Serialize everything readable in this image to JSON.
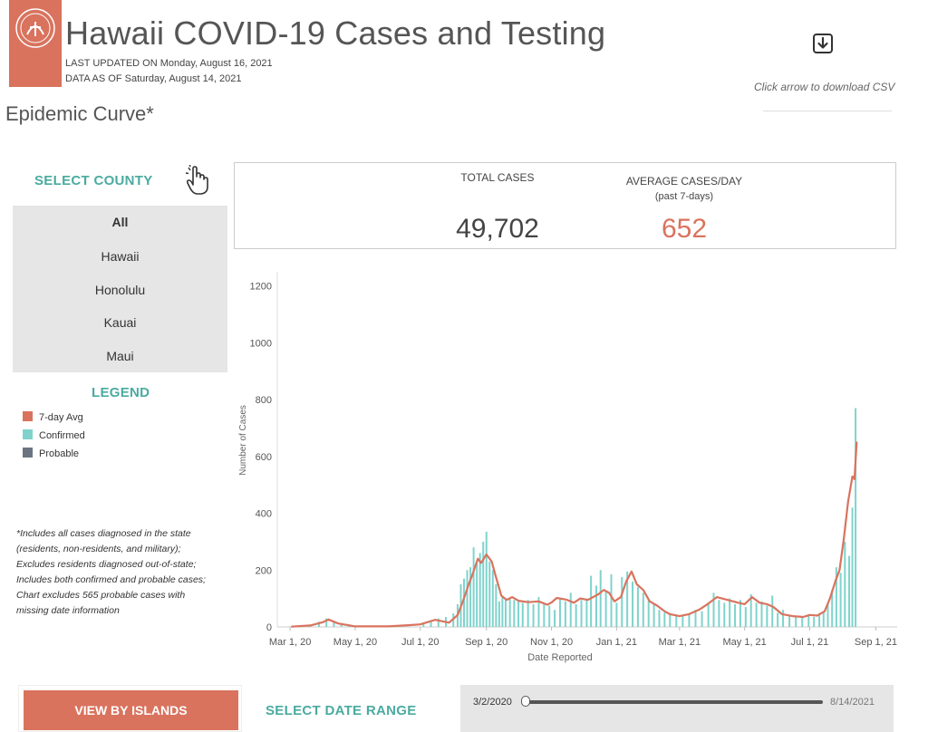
{
  "header": {
    "title": "Hawaii COVID-19 Cases and Testing",
    "last_updated": "LAST UPDATED ON Monday, August 16, 2021",
    "data_as_of": "DATA AS OF Saturday, August 14, 2021",
    "download_note": "Click arrow to download CSV"
  },
  "section_title": "Epidemic Curve*",
  "county_selector": {
    "title": "SELECT COUNTY",
    "items": [
      "All",
      "Hawaii",
      "Honolulu",
      "Kauai",
      "Maui"
    ],
    "selected": "All"
  },
  "legend": {
    "title": "LEGEND",
    "items": [
      {
        "label": "7-day Avg",
        "color": "#d9735e"
      },
      {
        "label": "Confirmed",
        "color": "#7fd3cc"
      },
      {
        "label": "Probable",
        "color": "#6b7480"
      }
    ]
  },
  "footnote": "*Includes all cases diagnosed in the state (residents, non-residents, and military); Excludes residents diagnosed out-of-state; Includes both confirmed and probable cases; Chart excludes 565 probable cases with missing date information",
  "kpis": {
    "total_cases_label": "TOTAL CASES",
    "total_cases_value": "49,702",
    "avg_label": "AVERAGE CASES/DAY",
    "avg_sublabel": "(past 7-days)",
    "avg_value": "652",
    "total_color": "#444444",
    "avg_color": "#d9735e"
  },
  "chart_data": {
    "type": "bar",
    "xlabel": "Date Reported",
    "ylabel": "Number of Cases",
    "ylim": [
      0,
      1250
    ],
    "yticks": [
      0,
      200,
      400,
      600,
      800,
      1000,
      1200
    ],
    "xlim": [
      "2020-02-18",
      "2021-09-21"
    ],
    "xticks": [
      {
        "date": "2020-03-01",
        "label": "Mar 1, 20"
      },
      {
        "date": "2020-05-01",
        "label": "May 1, 20"
      },
      {
        "date": "2020-07-01",
        "label": "Jul 1, 20"
      },
      {
        "date": "2020-09-01",
        "label": "Sep 1, 20"
      },
      {
        "date": "2020-11-01",
        "label": "Nov 1, 20"
      },
      {
        "date": "2021-01-01",
        "label": "Jan 1, 21"
      },
      {
        "date": "2021-03-01",
        "label": "Mar 1, 21"
      },
      {
        "date": "2021-05-01",
        "label": "May 1, 21"
      },
      {
        "date": "2021-07-01",
        "label": "Jul 1, 21"
      },
      {
        "date": "2021-09-01",
        "label": "Sep 1, 21"
      }
    ],
    "series": [
      {
        "name": "7-day Avg",
        "kind": "line",
        "color": "#d9735e",
        "points": [
          [
            "2020-03-02",
            1
          ],
          [
            "2020-03-20",
            5
          ],
          [
            "2020-04-01",
            17
          ],
          [
            "2020-04-06",
            26
          ],
          [
            "2020-04-15",
            12
          ],
          [
            "2020-05-01",
            2
          ],
          [
            "2020-06-01",
            2
          ],
          [
            "2020-06-20",
            6
          ],
          [
            "2020-07-01",
            9
          ],
          [
            "2020-07-15",
            25
          ],
          [
            "2020-07-28",
            15
          ],
          [
            "2020-08-05",
            42
          ],
          [
            "2020-08-10",
            90
          ],
          [
            "2020-08-15",
            145
          ],
          [
            "2020-08-19",
            185
          ],
          [
            "2020-08-24",
            240
          ],
          [
            "2020-08-27",
            225
          ],
          [
            "2020-09-01",
            255
          ],
          [
            "2020-09-06",
            230
          ],
          [
            "2020-09-10",
            175
          ],
          [
            "2020-09-15",
            110
          ],
          [
            "2020-09-20",
            95
          ],
          [
            "2020-09-25",
            105
          ],
          [
            "2020-10-01",
            92
          ],
          [
            "2020-10-10",
            87
          ],
          [
            "2020-10-20",
            90
          ],
          [
            "2020-10-28",
            78
          ],
          [
            "2020-11-01",
            86
          ],
          [
            "2020-11-06",
            102
          ],
          [
            "2020-11-15",
            96
          ],
          [
            "2020-11-22",
            85
          ],
          [
            "2020-11-28",
            100
          ],
          [
            "2020-12-05",
            95
          ],
          [
            "2020-12-15",
            115
          ],
          [
            "2020-12-20",
            130
          ],
          [
            "2020-12-25",
            120
          ],
          [
            "2020-12-30",
            90
          ],
          [
            "2021-01-05",
            105
          ],
          [
            "2021-01-10",
            160
          ],
          [
            "2021-01-15",
            195
          ],
          [
            "2021-01-20",
            150
          ],
          [
            "2021-01-26",
            130
          ],
          [
            "2021-02-01",
            90
          ],
          [
            "2021-02-08",
            75
          ],
          [
            "2021-02-15",
            55
          ],
          [
            "2021-02-20",
            45
          ],
          [
            "2021-03-01",
            38
          ],
          [
            "2021-03-10",
            45
          ],
          [
            "2021-03-20",
            62
          ],
          [
            "2021-03-28",
            82
          ],
          [
            "2021-04-05",
            105
          ],
          [
            "2021-04-15",
            95
          ],
          [
            "2021-04-25",
            85
          ],
          [
            "2021-05-01",
            80
          ],
          [
            "2021-05-08",
            105
          ],
          [
            "2021-05-15",
            85
          ],
          [
            "2021-05-22",
            80
          ],
          [
            "2021-05-28",
            70
          ],
          [
            "2021-06-05",
            45
          ],
          [
            "2021-06-15",
            38
          ],
          [
            "2021-06-25",
            35
          ],
          [
            "2021-07-01",
            42
          ],
          [
            "2021-07-08",
            40
          ],
          [
            "2021-07-15",
            55
          ],
          [
            "2021-07-20",
            100
          ],
          [
            "2021-07-25",
            160
          ],
          [
            "2021-07-29",
            200
          ],
          [
            "2021-08-02",
            310
          ],
          [
            "2021-08-06",
            440
          ],
          [
            "2021-08-10",
            530
          ],
          [
            "2021-08-12",
            520
          ],
          [
            "2021-08-14",
            652
          ]
        ]
      },
      {
        "name": "Confirmed",
        "kind": "bar",
        "color": "#7fd3cc",
        "points": [
          [
            "2020-03-20",
            6
          ],
          [
            "2020-03-28",
            18
          ],
          [
            "2020-04-04",
            30
          ],
          [
            "2020-04-11",
            20
          ],
          [
            "2020-04-18",
            8
          ],
          [
            "2020-04-25",
            3
          ],
          [
            "2020-07-04",
            12
          ],
          [
            "2020-07-11",
            22
          ],
          [
            "2020-07-18",
            30
          ],
          [
            "2020-07-25",
            35
          ],
          [
            "2020-08-01",
            48
          ],
          [
            "2020-08-05",
            80
          ],
          [
            "2020-08-08",
            150
          ],
          [
            "2020-08-11",
            170
          ],
          [
            "2020-08-14",
            200
          ],
          [
            "2020-08-17",
            210
          ],
          [
            "2020-08-20",
            280
          ],
          [
            "2020-08-23",
            230
          ],
          [
            "2020-08-26",
            260
          ],
          [
            "2020-08-29",
            300
          ],
          [
            "2020-09-01",
            335
          ],
          [
            "2020-09-04",
            230
          ],
          [
            "2020-09-07",
            200
          ],
          [
            "2020-09-10",
            150
          ],
          [
            "2020-09-13",
            90
          ],
          [
            "2020-09-16",
            110
          ],
          [
            "2020-09-19",
            95
          ],
          [
            "2020-09-23",
            100
          ],
          [
            "2020-09-27",
            95
          ],
          [
            "2020-10-01",
            90
          ],
          [
            "2020-10-05",
            85
          ],
          [
            "2020-10-10",
            95
          ],
          [
            "2020-10-15",
            80
          ],
          [
            "2020-10-20",
            105
          ],
          [
            "2020-10-25",
            80
          ],
          [
            "2020-10-30",
            75
          ],
          [
            "2020-11-04",
            60
          ],
          [
            "2020-11-09",
            100
          ],
          [
            "2020-11-14",
            90
          ],
          [
            "2020-11-19",
            120
          ],
          [
            "2020-11-24",
            80
          ],
          [
            "2020-11-29",
            95
          ],
          [
            "2020-12-04",
            100
          ],
          [
            "2020-12-08",
            180
          ],
          [
            "2020-12-13",
            145
          ],
          [
            "2020-12-17",
            200
          ],
          [
            "2020-12-22",
            125
          ],
          [
            "2020-12-27",
            185
          ],
          [
            "2021-01-01",
            85
          ],
          [
            "2021-01-06",
            175
          ],
          [
            "2021-01-11",
            195
          ],
          [
            "2021-01-16",
            160
          ],
          [
            "2021-01-21",
            140
          ],
          [
            "2021-01-26",
            120
          ],
          [
            "2021-01-31",
            95
          ],
          [
            "2021-02-05",
            80
          ],
          [
            "2021-02-10",
            60
          ],
          [
            "2021-02-15",
            50
          ],
          [
            "2021-02-20",
            45
          ],
          [
            "2021-02-26",
            40
          ],
          [
            "2021-03-04",
            38
          ],
          [
            "2021-03-10",
            45
          ],
          [
            "2021-03-16",
            60
          ],
          [
            "2021-03-22",
            55
          ],
          [
            "2021-03-28",
            85
          ],
          [
            "2021-04-02",
            120
          ],
          [
            "2021-04-07",
            95
          ],
          [
            "2021-04-12",
            85
          ],
          [
            "2021-04-17",
            100
          ],
          [
            "2021-04-22",
            80
          ],
          [
            "2021-04-27",
            95
          ],
          [
            "2021-05-02",
            70
          ],
          [
            "2021-05-07",
            115
          ],
          [
            "2021-05-12",
            85
          ],
          [
            "2021-05-17",
            90
          ],
          [
            "2021-05-22",
            75
          ],
          [
            "2021-05-27",
            110
          ],
          [
            "2021-06-01",
            50
          ],
          [
            "2021-06-06",
            60
          ],
          [
            "2021-06-12",
            40
          ],
          [
            "2021-06-18",
            35
          ],
          [
            "2021-06-24",
            38
          ],
          [
            "2021-06-30",
            40
          ],
          [
            "2021-07-05",
            35
          ],
          [
            "2021-07-10",
            45
          ],
          [
            "2021-07-14",
            55
          ],
          [
            "2021-07-18",
            80
          ],
          [
            "2021-07-22",
            130
          ],
          [
            "2021-07-26",
            210
          ],
          [
            "2021-07-30",
            190
          ],
          [
            "2021-08-03",
            300
          ],
          [
            "2021-08-07",
            250
          ],
          [
            "2021-08-10",
            420
          ],
          [
            "2021-08-13",
            770
          ]
        ]
      }
    ]
  },
  "footer": {
    "islands_button": "VIEW BY ISLANDS",
    "date_range_title": "SELECT DATE RANGE",
    "range_start": "3/2/2020",
    "range_end": "8/14/2021",
    "range_start_fraction": 0.0,
    "range_end_fraction": 1.0
  }
}
